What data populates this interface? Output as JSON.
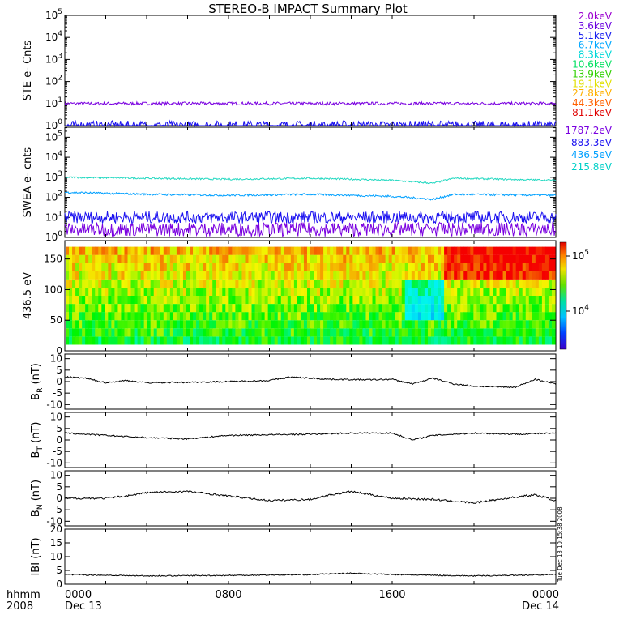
{
  "chart_data": {
    "title": "STEREO-B IMPACT Summary Plot",
    "side_stamp": "Tue Dec 13 10:15:38 2008",
    "time_axis": {
      "label_left": [
        "hhmm",
        "2008"
      ],
      "ticks": [
        {
          "hour": 0,
          "label": "0000",
          "sub": "Dec 13"
        },
        {
          "hour": 8,
          "label": "0800",
          "sub": ""
        },
        {
          "hour": 16,
          "label": "1600",
          "sub": ""
        },
        {
          "hour": 24,
          "label": "0000",
          "sub": "Dec 14"
        }
      ],
      "range_hours": [
        0,
        24
      ]
    },
    "panels": [
      {
        "id": "ste",
        "type": "line",
        "ylabel": "STE e- Cnts",
        "ylog": true,
        "yticks": [
          "10^0",
          "10^1",
          "10^2",
          "10^3",
          "10^4",
          "10^5"
        ],
        "ylim_exp": [
          0,
          5
        ],
        "legend": [
          "2.0keV",
          "3.6keV",
          "5.1keV",
          "6.7keV",
          "8.3keV",
          "10.6keV",
          "13.9keV",
          "19.1keV",
          "27.8keV",
          "44.3keV",
          "81.1keV"
        ],
        "legend_colors": [
          "#9b00d0",
          "#6a00e0",
          "#1a20f0",
          "#00a8ff",
          "#00d8d8",
          "#00e060",
          "#30d000",
          "#e0e000",
          "#ffb000",
          "#ff6000",
          "#e00000"
        ],
        "series": [
          {
            "name": "2.0keV",
            "color": "#7a00e0",
            "level": 1.0,
            "noise": 0.07
          },
          {
            "name": "3.6keV",
            "color": "#1a10f0",
            "level": 0.0,
            "noise": 0.22
          }
        ]
      },
      {
        "id": "swea",
        "type": "line",
        "ylabel": "SWEA e- cnts",
        "ylog": true,
        "yticks": [
          "10^0",
          "10^1",
          "10^2",
          "10^3",
          "10^4",
          "10^5"
        ],
        "ylim_exp": [
          0,
          5.5
        ],
        "legend": [
          "1787.2eV",
          "883.3eV",
          "436.5eV",
          "215.8eV"
        ],
        "legend_colors": [
          "#7a00e0",
          "#1a10f0",
          "#00a0ff",
          "#00d0c8"
        ],
        "series": [
          {
            "name": "215.8eV",
            "color": "#20d8c0",
            "points": [
              [
                0,
                3.0
              ],
              [
                4,
                2.95
              ],
              [
                8,
                2.9
              ],
              [
                12,
                2.95
              ],
              [
                16,
                2.85
              ],
              [
                18,
                2.7
              ],
              [
                19,
                2.95
              ],
              [
                24,
                2.85
              ]
            ],
            "noise": 0.04
          },
          {
            "name": "436.5eV",
            "color": "#00a0ff",
            "points": [
              [
                0,
                2.25
              ],
              [
                4,
                2.15
              ],
              [
                8,
                2.1
              ],
              [
                12,
                2.15
              ],
              [
                16,
                2.05
              ],
              [
                18,
                1.9
              ],
              [
                19,
                2.15
              ],
              [
                24,
                2.1
              ]
            ],
            "noise": 0.05
          },
          {
            "name": "883.3eV",
            "color": "#1a10f0",
            "points": [
              [
                0,
                1.0
              ],
              [
                24,
                1.0
              ]
            ],
            "noise": 0.3
          },
          {
            "name": "1787.2eV",
            "color": "#7a00e0",
            "points": [
              [
                0,
                0.4
              ],
              [
                24,
                0.4
              ]
            ],
            "noise": 0.35
          }
        ]
      },
      {
        "id": "pad",
        "type": "heatmap",
        "ylabel": "436.5 eV",
        "yticks": [
          "0",
          "50",
          "100",
          "150"
        ],
        "ylim": [
          0,
          180
        ],
        "colorbar": {
          "ticks": [
            "10^4",
            "10^5"
          ]
        }
      },
      {
        "id": "br",
        "type": "line",
        "ylabel": "B_R (nT)",
        "ylabel_main": "B",
        "ylabel_sub": "R",
        "ylabel_unit": "(nT)",
        "yticks": [
          "10",
          "5",
          "0",
          "-5",
          "-10"
        ],
        "ylim": [
          -12,
          12
        ],
        "series": [
          {
            "name": "",
            "color": "#000000",
            "points": [
              [
                0,
                2
              ],
              [
                1,
                1.5
              ],
              [
                2,
                -0.5
              ],
              [
                3,
                0.5
              ],
              [
                4,
                -0.5
              ],
              [
                6,
                -0.3
              ],
              [
                8,
                0
              ],
              [
                10,
                0.5
              ],
              [
                11,
                2
              ],
              [
                13,
                1
              ],
              [
                15,
                0.8
              ],
              [
                16,
                1
              ],
              [
                17,
                -1
              ],
              [
                18,
                1.5
              ],
              [
                19,
                -1
              ],
              [
                20,
                -2
              ],
              [
                22,
                -2.5
              ],
              [
                23,
                1
              ],
              [
                24,
                -1
              ]
            ],
            "noise": 0.3
          }
        ]
      },
      {
        "id": "bt",
        "type": "line",
        "ylabel": "B_T (nT)",
        "ylabel_main": "B",
        "ylabel_sub": "T",
        "ylabel_unit": "(nT)",
        "yticks": [
          "10",
          "5",
          "0",
          "-5",
          "-10"
        ],
        "ylim": [
          -12,
          12
        ],
        "series": [
          {
            "name": "",
            "color": "#000000",
            "points": [
              [
                0,
                3
              ],
              [
                2,
                2
              ],
              [
                4,
                1
              ],
              [
                6,
                0.5
              ],
              [
                8,
                2
              ],
              [
                12,
                2.5
              ],
              [
                14,
                3
              ],
              [
                16,
                3
              ],
              [
                17,
                0
              ],
              [
                18,
                2
              ],
              [
                20,
                3
              ],
              [
                22,
                2.5
              ],
              [
                24,
                3
              ]
            ],
            "noise": 0.3
          }
        ]
      },
      {
        "id": "bn",
        "type": "line",
        "ylabel": "B_N (nT)",
        "ylabel_main": "B",
        "ylabel_sub": "N",
        "ylabel_unit": "(nT)",
        "yticks": [
          "10",
          "5",
          "0",
          "-5",
          "-10"
        ],
        "ylim": [
          -12,
          12
        ],
        "series": [
          {
            "name": "",
            "color": "#000000",
            "points": [
              [
                0,
                0
              ],
              [
                2,
                0
              ],
              [
                3,
                1
              ],
              [
                4,
                2.5
              ],
              [
                6,
                3
              ],
              [
                8,
                1
              ],
              [
                10,
                -1
              ],
              [
                12,
                -0.5
              ],
              [
                13,
                1.5
              ],
              [
                14,
                3
              ],
              [
                16,
                0
              ],
              [
                18,
                -0.5
              ],
              [
                20,
                -2
              ],
              [
                22,
                0.5
              ],
              [
                23,
                1.5
              ],
              [
                24,
                -1
              ]
            ],
            "noise": 0.4
          }
        ]
      },
      {
        "id": "bmag",
        "type": "line",
        "ylabel": "|B| (nT)",
        "ylabel_main": "IBI",
        "ylabel_sub": "",
        "ylabel_unit": "(nT)",
        "yticks": [
          "20",
          "15",
          "10",
          "5",
          "0"
        ],
        "ylim": [
          0,
          20
        ],
        "series": [
          {
            "name": "",
            "color": "#000000",
            "points": [
              [
                0,
                3.5
              ],
              [
                4,
                3
              ],
              [
                8,
                3.2
              ],
              [
                12,
                3.5
              ],
              [
                14,
                4
              ],
              [
                16,
                3.5
              ],
              [
                20,
                3
              ],
              [
                24,
                3.5
              ]
            ],
            "noise": 0.2
          }
        ]
      }
    ]
  }
}
